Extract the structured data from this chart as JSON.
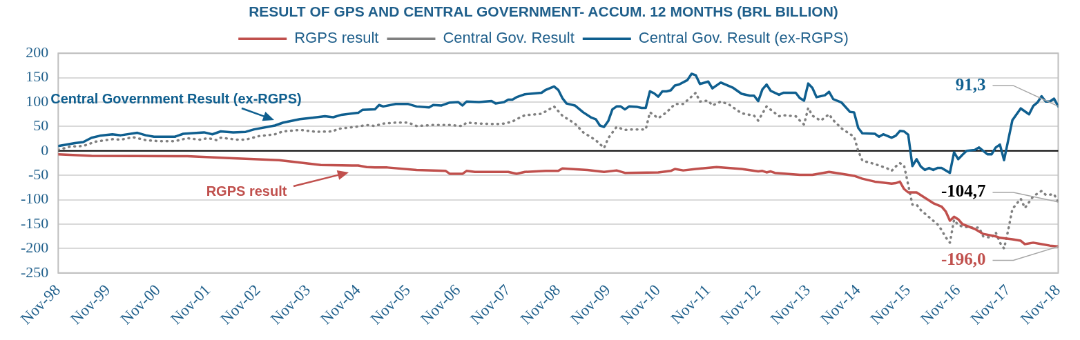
{
  "chart_data": {
    "type": "line",
    "title": "RESULT OF GPS AND CENTRAL GOVERNMENT- ACCUM. 12 MONTHS (BRL BILLION)",
    "xlim": [
      "1998-11",
      "2018-11"
    ],
    "xticks": [
      {
        "value": "1998-11",
        "label": "Nov-98"
      },
      {
        "value": "1999-11",
        "label": "Nov-99"
      },
      {
        "value": "2000-11",
        "label": "Nov-00"
      },
      {
        "value": "2001-11",
        "label": "Nov-01"
      },
      {
        "value": "2002-11",
        "label": "Nov-02"
      },
      {
        "value": "2003-11",
        "label": "Nov-03"
      },
      {
        "value": "2004-11",
        "label": "Nov-04"
      },
      {
        "value": "2005-11",
        "label": "Nov-05"
      },
      {
        "value": "2006-11",
        "label": "Nov-06"
      },
      {
        "value": "2007-11",
        "label": "Nov-07"
      },
      {
        "value": "2008-11",
        "label": "Nov-08"
      },
      {
        "value": "2009-11",
        "label": "Nov-09"
      },
      {
        "value": "2010-11",
        "label": "Nov-10"
      },
      {
        "value": "2011-11",
        "label": "Nov-11"
      },
      {
        "value": "2012-11",
        "label": "Nov-12"
      },
      {
        "value": "2013-11",
        "label": "Nov-13"
      },
      {
        "value": "2014-11",
        "label": "Nov-14"
      },
      {
        "value": "2015-11",
        "label": "Nov-15"
      },
      {
        "value": "2016-11",
        "label": "Nov-16"
      },
      {
        "value": "2017-11",
        "label": "Nov-17"
      },
      {
        "value": "2018-11",
        "label": "Nov-18"
      }
    ],
    "ylim": [
      -250,
      200
    ],
    "yticks": [
      -250,
      -200,
      -150,
      -100,
      -50,
      0,
      50,
      100,
      150,
      200
    ],
    "grid": "y",
    "legend": "top",
    "marker": "none",
    "series": [
      {
        "name": "RGPS result",
        "color": "#c0504d",
        "line_style": "solid",
        "x": [
          "1998-11",
          "1999-07",
          "2001-06",
          "2002-05",
          "2003-04",
          "2003-08",
          "2004-02",
          "2004-11",
          "2005-01",
          "2005-03",
          "2005-06",
          "2006-01",
          "2006-08",
          "2006-09",
          "2006-12",
          "2007-01",
          "2007-03",
          "2007-11",
          "2008-01",
          "2008-03",
          "2008-08",
          "2008-11",
          "2008-12",
          "2009-06",
          "2009-10",
          "2010-01",
          "2010-03",
          "2010-11",
          "2011-02",
          "2011-03",
          "2011-05",
          "2011-08",
          "2012-01",
          "2012-07",
          "2012-11",
          "2012-12",
          "2013-01",
          "2013-02",
          "2013-03",
          "2013-09",
          "2013-12",
          "2014-04",
          "2014-07",
          "2014-10",
          "2014-12",
          "2015-03",
          "2015-07",
          "2015-08",
          "2015-09",
          "2015-10",
          "2015-11",
          "2016-01",
          "2016-03",
          "2016-05",
          "2016-07",
          "2016-08",
          "2016-09",
          "2016-10",
          "2016-11",
          "2016-12",
          "2017-03",
          "2017-05",
          "2017-08",
          "2017-09",
          "2017-12",
          "2018-02",
          "2018-03",
          "2018-05",
          "2018-07",
          "2018-09",
          "2018-11"
        ],
        "values": [
          -7,
          -10,
          -11,
          -15,
          -19,
          -23,
          -29,
          -30,
          -33,
          -34,
          -34,
          -39,
          -41,
          -47,
          -47,
          -41,
          -43,
          -43,
          -47,
          -43,
          -41,
          -41,
          -36,
          -39,
          -43,
          -40,
          -45,
          -44,
          -41,
          -37,
          -40,
          -37,
          -33,
          -37,
          -42,
          -41,
          -44,
          -42,
          -45,
          -49,
          -49,
          -43,
          -47,
          -51,
          -57,
          -63,
          -67,
          -66,
          -63,
          -78,
          -85,
          -85,
          -96,
          -107,
          -114,
          -124,
          -143,
          -135,
          -140,
          -150,
          -160,
          -170,
          -175,
          -178,
          -181,
          -184,
          -191,
          -188,
          -191,
          -194,
          -196
        ]
      },
      {
        "name": "Central Gov. Result",
        "color": "#808080",
        "line_style": "dotted",
        "x": [
          "1998-11",
          "1999-02",
          "1999-05",
          "1999-08",
          "1999-12",
          "2000-02",
          "2000-05",
          "2000-08",
          "2000-11",
          "2001-03",
          "2001-06",
          "2001-09",
          "2001-11",
          "2002-01",
          "2002-02",
          "2002-06",
          "2002-08",
          "2002-11",
          "2003-03",
          "2003-05",
          "2003-09",
          "2004-01",
          "2004-05",
          "2004-06",
          "2004-11",
          "2005-01",
          "2005-03",
          "2005-05",
          "2005-08",
          "2005-11",
          "2006-01",
          "2006-05",
          "2006-09",
          "2006-12",
          "2007-01",
          "2007-04",
          "2007-08",
          "2007-10",
          "2007-12",
          "2008-01",
          "2008-03",
          "2008-07",
          "2008-08",
          "2008-10",
          "2008-12",
          "2009-03",
          "2009-05",
          "2009-08",
          "2009-10",
          "2009-11",
          "2010-01",
          "2010-03",
          "2010-05",
          "2010-08",
          "2010-09",
          "2010-11",
          "2011-01",
          "2011-03",
          "2011-05",
          "2011-08",
          "2011-09",
          "2011-11",
          "2011-12",
          "2012-02",
          "2012-04",
          "2012-07",
          "2012-10",
          "2012-11",
          "2013-01",
          "2013-04",
          "2013-05",
          "2013-08",
          "2013-09",
          "2013-10",
          "2013-11",
          "2013-12",
          "2014-02",
          "2014-04",
          "2014-05",
          "2014-07",
          "2014-10",
          "2014-11",
          "2014-12",
          "2015-03",
          "2015-06",
          "2015-07",
          "2015-08",
          "2015-09",
          "2015-10",
          "2015-11",
          "2015-12",
          "2016-01",
          "2016-02",
          "2016-05",
          "2016-06",
          "2016-07",
          "2016-08",
          "2016-09",
          "2016-10",
          "2016-11",
          "2016-12",
          "2017-02",
          "2017-04",
          "2017-05",
          "2017-07",
          "2017-08",
          "2017-09",
          "2017-10",
          "2017-11",
          "2017-12",
          "2018-02",
          "2018-03",
          "2018-05",
          "2018-07",
          "2018-08",
          "2018-10",
          "2018-11"
        ],
        "values": [
          2,
          9,
          10,
          19,
          24,
          23,
          28,
          22,
          20,
          20,
          26,
          23,
          26,
          22,
          27,
          23,
          23,
          30,
          34,
          40,
          43,
          39,
          40,
          45,
          50,
          53,
          51,
          56,
          58,
          58,
          51,
          53,
          53,
          51,
          58,
          56,
          55,
          56,
          60,
          65,
          73,
          76,
          81,
          91,
          72,
          56,
          38,
          22,
          6,
          26,
          49,
          43,
          44,
          44,
          79,
          67,
          79,
          96,
          96,
          119,
          101,
          103,
          93,
          101,
          95,
          77,
          72,
          62,
          91,
          71,
          73,
          71,
          62,
          54,
          88,
          72,
          62,
          75,
          63,
          46,
          29,
          0,
          -20,
          -27,
          -36,
          -41,
          -32,
          -25,
          -30,
          -70,
          -110,
          -110,
          -121,
          -143,
          -150,
          -162,
          -177,
          -188,
          -141,
          -152,
          -155,
          -157,
          -157,
          -175,
          -178,
          -167,
          -188,
          -200,
          -162,
          -119,
          -98,
          -117,
          -93,
          -82,
          -90,
          -89,
          -104.7
        ]
      },
      {
        "name": "Central Gov. Result (ex-RGPS)",
        "color": "#0f5f8f",
        "line_style": "solid",
        "x": [
          "1998-11",
          "1999-03",
          "1999-05",
          "1999-07",
          "1999-09",
          "1999-12",
          "2000-02",
          "2000-06",
          "2000-08",
          "2000-10",
          "2001-03",
          "2001-05",
          "2001-10",
          "2001-12",
          "2002-02",
          "2002-05",
          "2002-08",
          "2002-10",
          "2003-03",
          "2003-05",
          "2003-09",
          "2003-12",
          "2004-03",
          "2004-05",
          "2004-07",
          "2004-11",
          "2004-12",
          "2005-03",
          "2005-04",
          "2005-05",
          "2005-08",
          "2005-11",
          "2006-01",
          "2006-04",
          "2006-05",
          "2006-07",
          "2006-09",
          "2006-11",
          "2006-12",
          "2007-01",
          "2007-04",
          "2007-07",
          "2007-08",
          "2007-10",
          "2007-11",
          "2007-12",
          "2008-01",
          "2008-03",
          "2008-07",
          "2008-08",
          "2008-10",
          "2008-11",
          "2008-12",
          "2009-01",
          "2009-03",
          "2009-05",
          "2009-07",
          "2009-08",
          "2009-09",
          "2009-10",
          "2009-11",
          "2009-12",
          "2010-01",
          "2010-02",
          "2010-03",
          "2010-04",
          "2010-06",
          "2010-07",
          "2010-08",
          "2010-09",
          "2010-10",
          "2010-11",
          "2010-12",
          "2011-01",
          "2011-02",
          "2011-03",
          "2011-04",
          "2011-06",
          "2011-07",
          "2011-08",
          "2011-09",
          "2011-11",
          "2011-12",
          "2012-02",
          "2012-05",
          "2012-07",
          "2012-09",
          "2012-10",
          "2012-11",
          "2012-12",
          "2013-01",
          "2013-02",
          "2013-04",
          "2013-05",
          "2013-08",
          "2013-09",
          "2013-10",
          "2013-11",
          "2013-12",
          "2014-01",
          "2014-03",
          "2014-04",
          "2014-05",
          "2014-07",
          "2014-09",
          "2014-10",
          "2014-11",
          "2014-12",
          "2015-03",
          "2015-04",
          "2015-05",
          "2015-07",
          "2015-08",
          "2015-09",
          "2015-10",
          "2015-11",
          "2015-12",
          "2016-01",
          "2016-02",
          "2016-03",
          "2016-04",
          "2016-05",
          "2016-06",
          "2016-07",
          "2016-09",
          "2016-10",
          "2016-11",
          "2016-12",
          "2017-01",
          "2017-03",
          "2017-04",
          "2017-06",
          "2017-07",
          "2017-08",
          "2017-09",
          "2017-10",
          "2017-12",
          "2018-02",
          "2018-04",
          "2018-05",
          "2018-06",
          "2018-07",
          "2018-08",
          "2018-09",
          "2018-10",
          "2018-11"
        ],
        "values": [
          10,
          16,
          18,
          27,
          31,
          34,
          32,
          37,
          32,
          29,
          29,
          35,
          38,
          34,
          40,
          38,
          39,
          44,
          52,
          58,
          65,
          68,
          71,
          69,
          74,
          78,
          84,
          85,
          94,
          91,
          96,
          96,
          91,
          89,
          94,
          93,
          99,
          100,
          93,
          101,
          100,
          102,
          97,
          100,
          105,
          105,
          110,
          116,
          119,
          125,
          132,
          125,
          108,
          97,
          93,
          79,
          68,
          65,
          52,
          49,
          61,
          85,
          91,
          91,
          85,
          91,
          90,
          88,
          88,
          122,
          118,
          111,
          122,
          122,
          124,
          134,
          136,
          145,
          158,
          155,
          137,
          142,
          128,
          140,
          129,
          117,
          113,
          113,
          102,
          126,
          136,
          123,
          115,
          119,
          119,
          108,
          103,
          138,
          129,
          110,
          114,
          121,
          106,
          99,
          80,
          79,
          47,
          36,
          35,
          29,
          34,
          27,
          31,
          41,
          40,
          33,
          -31,
          -17,
          -32,
          -39,
          -35,
          -39,
          -35,
          -35,
          -45,
          -3,
          -17,
          -8,
          0,
          2,
          7,
          -7,
          -7,
          7,
          13,
          -19,
          63,
          87,
          75,
          92,
          99,
          112,
          101,
          101,
          107,
          91.3
        ]
      }
    ],
    "annotations": [
      "Central Government Result (ex-RGPS)",
      "RGPS result",
      {
        "text": "91,3",
        "x": "2018-11",
        "y": 91.3
      },
      {
        "text": "-104,7",
        "x": "2018-11",
        "y": -104.7
      },
      {
        "text": "-196,0",
        "x": "2018-11",
        "y": -196
      }
    ]
  }
}
